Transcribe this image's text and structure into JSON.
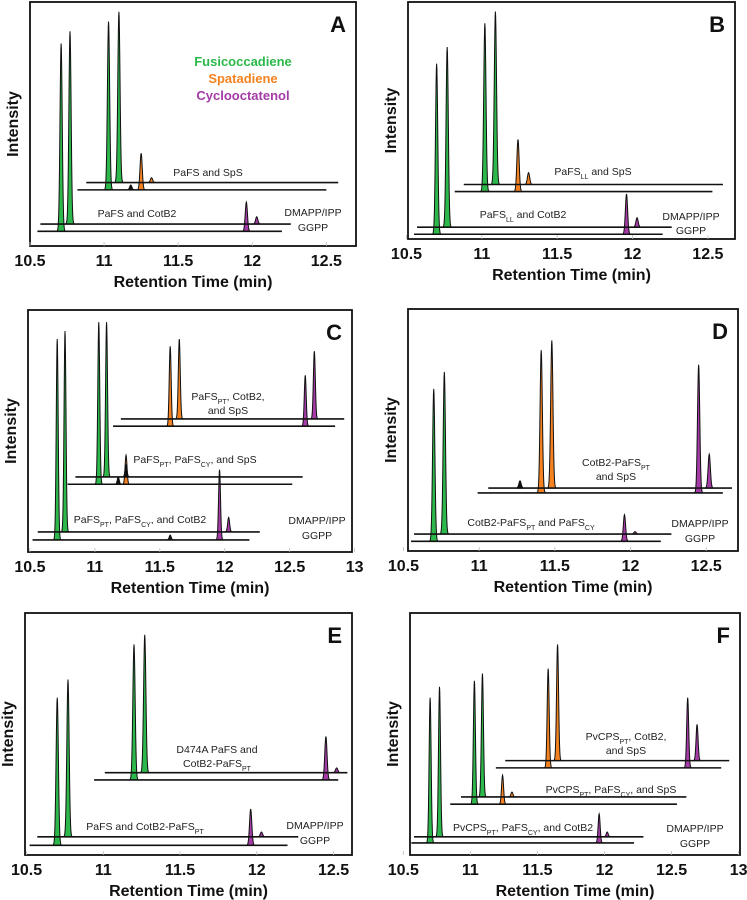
{
  "colors": {
    "Fusicoccadiene": "#2db84b",
    "Spatadiene": "#f58220",
    "Cyclooctatenol": "#a43ba6",
    "none": "#111111"
  },
  "legend": [
    "Fusicoccadiene",
    "Spatadiene",
    "Cyclooctatenol"
  ],
  "chart_data": [
    {
      "type": "line",
      "panel": "A",
      "xlabel": "Retention Time (min)",
      "ylabel": "Intensity",
      "xlim": [
        10.5,
        12.7
      ],
      "xticks": [
        "10.5",
        "11",
        "11.5",
        "12",
        "12.5"
      ],
      "labels": [
        [
          [
            {
              "text": "PaFS and SpS"
            }
          ]
        ],
        [
          [
            {
              "text": "PaFS and CotB2"
            }
          ]
        ],
        [
          [
            {
              "text": "DMAPP/IPP"
            }
          ]
        ],
        [
          [
            {
              "text": "GGPP"
            }
          ]
        ]
      ],
      "traces": [
        {
          "name": "GGPP",
          "x": [
            10.55,
            12.2
          ],
          "baseline": 0.06,
          "peaks": [
            [
              10.71,
              0.77,
              "Fusicoccadiene"
            ],
            [
              11.96,
              0.12,
              "Cyclooctatenol"
            ]
          ]
        },
        {
          "name": "DMAPP/IPP",
          "x": [
            10.57,
            12.26
          ],
          "baseline": 0.09,
          "peaks": [
            [
              10.77,
              0.79,
              "Fusicoccadiene"
            ],
            [
              12.03,
              0.03,
              "Cyclooctatenol"
            ]
          ]
        },
        {
          "name": "PaFS and SpS (GGPP)",
          "x": [
            10.82,
            12.5
          ],
          "baseline": 0.23,
          "peaks": [
            [
              11.03,
              0.69,
              "Fusicoccadiene"
            ],
            [
              11.18,
              0.02,
              "none"
            ],
            [
              11.25,
              0.15,
              "Spatadiene"
            ]
          ]
        },
        {
          "name": "PaFS and SpS (DMAPP/IPP)",
          "x": [
            10.88,
            12.58
          ],
          "baseline": 0.26,
          "peaks": [
            [
              11.1,
              0.7,
              "Fusicoccadiene"
            ],
            [
              11.32,
              0.02,
              "Spatadiene"
            ]
          ]
        }
      ]
    },
    {
      "type": "line",
      "panel": "B",
      "xlabel": "Retention Time (min)",
      "ylabel": "Intensity",
      "xlim": [
        10.51,
        12.68
      ],
      "xticks": [
        "10.5",
        "11",
        "11.5",
        "12",
        "12.5"
      ],
      "labels": [
        [
          [
            {
              "text": "PaFS"
            },
            {
              "text": "LL",
              "sub": true
            },
            {
              "text": " and SpS"
            }
          ]
        ],
        [
          [
            {
              "text": "PaFS"
            },
            {
              "text": "LL",
              "sub": true
            },
            {
              "text": " and CotB2"
            }
          ]
        ],
        [
          [
            {
              "text": "DMAPP/IPP"
            }
          ]
        ],
        [
          [
            {
              "text": "GGPP"
            }
          ]
        ]
      ],
      "traces": [
        {
          "name": "GGPP",
          "x": [
            10.55,
            12.2
          ],
          "baseline": 0.02,
          "peaks": [
            [
              10.7,
              0.72,
              "Fusicoccadiene"
            ],
            [
              11.96,
              0.17,
              "Cyclooctatenol"
            ]
          ]
        },
        {
          "name": "DMAPP/IPP",
          "x": [
            10.57,
            12.26
          ],
          "baseline": 0.05,
          "peaks": [
            [
              10.77,
              0.76,
              "Fusicoccadiene"
            ],
            [
              12.03,
              0.04,
              "Cyclooctatenol"
            ]
          ]
        },
        {
          "name": "PaFS_LL and SpS (GGPP)",
          "x": [
            10.82,
            12.53
          ],
          "baseline": 0.2,
          "peaks": [
            [
              11.02,
              0.71,
              "Fusicoccadiene"
            ],
            [
              11.24,
              0.22,
              "Spatadiene"
            ]
          ]
        },
        {
          "name": "PaFS_LL and SpS (DMAPP/IPP)",
          "x": [
            10.88,
            12.6
          ],
          "baseline": 0.23,
          "peaks": [
            [
              11.09,
              0.73,
              "Fusicoccadiene"
            ],
            [
              11.31,
              0.05,
              "Spatadiene"
            ]
          ]
        }
      ]
    },
    {
      "type": "line",
      "panel": "C",
      "xlabel": "Retention Time (min)",
      "ylabel": "Intensity",
      "xlim": [
        10.485,
        12.98
      ],
      "xticks": [
        "10.5",
        "11",
        "11.5",
        "12",
        "12.5",
        "13"
      ],
      "labels": [
        [
          [
            {
              "text": "PaFS"
            },
            {
              "text": "PT",
              "sub": true
            },
            {
              "text": ", CotB2,"
            }
          ],
          [
            {
              "text": "and SpS"
            }
          ]
        ],
        [
          [
            {
              "text": "PaFS"
            },
            {
              "text": "PT",
              "sub": true
            },
            {
              "text": ", PaFS"
            },
            {
              "text": "CY",
              "sub": true
            },
            {
              "text": ", and SpS"
            }
          ]
        ],
        [
          [
            {
              "text": "PaFS"
            },
            {
              "text": "PT",
              "sub": true
            },
            {
              "text": ", PaFS"
            },
            {
              "text": "CY",
              "sub": true
            },
            {
              "text": ", and CotB2"
            }
          ]
        ],
        [
          [
            {
              "text": "DMAPP/IPP"
            }
          ]
        ],
        [
          [
            {
              "text": "GGPP"
            }
          ]
        ]
      ],
      "traces": [
        {
          "name": "GGPP",
          "x": [
            10.52,
            12.19
          ],
          "baseline": 0.05,
          "peaks": [
            [
              10.71,
              0.83,
              "Fusicoccadiene"
            ],
            [
              11.58,
              0.02,
              "none"
            ],
            [
              11.96,
              0.29,
              "Cyclooctatenol"
            ]
          ]
        },
        {
          "name": "DMAPP/IPP",
          "x": [
            10.56,
            12.27
          ],
          "baseline": 0.083,
          "peaks": [
            [
              10.77,
              0.83,
              "Fusicoccadiene"
            ],
            [
              12.03,
              0.06,
              "Cyclooctatenol"
            ]
          ]
        },
        {
          "name": "PaFS_PT, PaFS_CY, and SpS (GGPP)",
          "x": [
            10.79,
            12.52
          ],
          "baseline": 0.28,
          "peaks": [
            [
              11.03,
              0.67,
              "Fusicoccadiene"
            ],
            [
              11.18,
              0.03,
              "none"
            ],
            [
              11.24,
              0.12,
              "Spatadiene"
            ]
          ]
        },
        {
          "name": "PaFS_PT, PaFS_CY, and SpS (DMAPP/IPP)",
          "x": [
            10.85,
            12.6
          ],
          "baseline": 0.31,
          "peaks": [
            [
              11.09,
              0.64,
              "Fusicoccadiene"
            ],
            [
              11.24,
              0.05,
              "none"
            ]
          ]
        },
        {
          "name": "PaFS_PT, CotB2, and SpS (GGPP)",
          "x": [
            11.14,
            12.85
          ],
          "baseline": 0.52,
          "peaks": [
            [
              11.58,
              0.33,
              "Spatadiene"
            ],
            [
              12.62,
              0.21,
              "Cyclooctatenol"
            ]
          ]
        },
        {
          "name": "PaFS_PT, CotB2, and SpS (DMAPP/IPP)",
          "x": [
            11.2,
            12.92
          ],
          "baseline": 0.55,
          "peaks": [
            [
              11.65,
              0.33,
              "Spatadiene"
            ],
            [
              12.69,
              0.28,
              "Cyclooctatenol"
            ]
          ]
        }
      ]
    },
    {
      "type": "line",
      "panel": "D",
      "xlabel": "Retention Time (min)",
      "ylabel": "Intensity",
      "xlim": [
        10.53,
        12.71
      ],
      "xticks": [
        "10.5",
        "11",
        "11.5",
        "12",
        "12.5"
      ],
      "labels": [
        [
          [
            {
              "text": "CotB2-PaFS"
            },
            {
              "text": "PT",
              "sub": true
            }
          ],
          [
            {
              "text": "and SpS"
            }
          ]
        ],
        [
          [
            {
              "text": "CotB2-PaFS"
            },
            {
              "text": "PT",
              "sub": true
            },
            {
              "text": " and PaFS"
            },
            {
              "text": "CY",
              "sub": true
            }
          ]
        ],
        [
          [
            {
              "text": "DMAPP/IPP"
            }
          ]
        ],
        [
          [
            {
              "text": "GGPP"
            }
          ]
        ]
      ],
      "traces": [
        {
          "name": "GGPP",
          "x": [
            10.55,
            12.2
          ],
          "baseline": 0.04,
          "peaks": [
            [
              10.7,
              0.63,
              "Fusicoccadiene"
            ],
            [
              11.96,
              0.11,
              "Cyclooctatenol"
            ]
          ]
        },
        {
          "name": "DMAPP/IPP",
          "x": [
            10.57,
            12.27
          ],
          "baseline": 0.07,
          "peaks": [
            [
              10.77,
              0.67,
              "Fusicoccadiene"
            ],
            [
              12.03,
              0.01,
              "Cyclooctatenol"
            ]
          ]
        },
        {
          "name": "CotB2-PaFS_PT and SpS (GGPP)",
          "x": [
            10.99,
            12.61
          ],
          "baseline": 0.24,
          "peaks": [
            [
              11.41,
              0.59,
              "Spatadiene"
            ],
            [
              12.45,
              0.53,
              "Cyclooctatenol"
            ]
          ]
        },
        {
          "name": "CotB2-PaFS_PT and SpS (DMAPP/IPP)",
          "x": [
            11.06,
            12.67
          ],
          "baseline": 0.26,
          "peaks": [
            [
              11.27,
              0.03,
              "none"
            ],
            [
              11.48,
              0.61,
              "Spatadiene"
            ],
            [
              12.52,
              0.14,
              "Cyclooctatenol"
            ]
          ]
        }
      ]
    },
    {
      "type": "line",
      "panel": "E",
      "xlabel": "Retention Time (min)",
      "ylabel": "Intensity",
      "xlim": [
        10.49,
        12.62
      ],
      "xticks": [
        "10.5",
        "11",
        "11.5",
        "12",
        "12.5"
      ],
      "labels": [
        [
          [
            {
              "text": "D474A PaFS and"
            }
          ],
          [
            {
              "text": "CotB2-PaFS"
            },
            {
              "text": "PT",
              "sub": true
            }
          ]
        ],
        [
          [
            {
              "text": "PaFS and CotB2-PaFS"
            },
            {
              "text": "PT",
              "sub": true
            }
          ]
        ],
        [
          [
            {
              "text": "DMAPP/IPP"
            }
          ]
        ],
        [
          [
            {
              "text": "GGPP"
            }
          ]
        ]
      ],
      "traces": [
        {
          "name": "GGPP",
          "x": [
            10.52,
            12.2
          ],
          "baseline": 0.04,
          "peaks": [
            [
              10.7,
              0.61,
              "Fusicoccadiene"
            ],
            [
              11.96,
              0.15,
              "Cyclooctatenol"
            ]
          ]
        },
        {
          "name": "DMAPP/IPP",
          "x": [
            10.57,
            12.27
          ],
          "baseline": 0.075,
          "peaks": [
            [
              10.77,
              0.65,
              "Fusicoccadiene"
            ],
            [
              12.03,
              0.02,
              "Cyclooctatenol"
            ]
          ]
        },
        {
          "name": "D474A PaFS and CotB2-PaFS_PT (GGPP)",
          "x": [
            10.94,
            12.53
          ],
          "baseline": 0.31,
          "peaks": [
            [
              11.2,
              0.56,
              "Fusicoccadiene"
            ],
            [
              12.45,
              0.18,
              "Cyclooctatenol"
            ]
          ]
        },
        {
          "name": "D474A PaFS and CotB2-PaFS_PT (DMAPP/IPP)",
          "x": [
            11.01,
            12.59
          ],
          "baseline": 0.34,
          "peaks": [
            [
              11.27,
              0.57,
              "Fusicoccadiene"
            ],
            [
              12.52,
              0.02,
              "Cyclooctatenol"
            ]
          ]
        }
      ]
    },
    {
      "type": "line",
      "panel": "F",
      "xlabel": "Retention Time (min)",
      "ylabel": "Intensity",
      "xlim": [
        10.55,
        13.01
      ],
      "xticks": [
        "10.5",
        "11",
        "11.5",
        "12",
        "12.5",
        "13"
      ],
      "labels": [
        [
          [
            {
              "text": "PvCPS"
            },
            {
              "text": "PT",
              "sub": true
            },
            {
              "text": ", CotB2,"
            }
          ],
          [
            {
              "text": "and SpS"
            }
          ]
        ],
        [
          [
            {
              "text": "PvCPS"
            },
            {
              "text": "PT",
              "sub": true
            },
            {
              "text": ", PaFS"
            },
            {
              "text": "CY",
              "sub": true
            },
            {
              "text": ", and SpS"
            }
          ]
        ],
        [
          [
            {
              "text": "PvCPS"
            },
            {
              "text": "PT",
              "sub": true
            },
            {
              "text": ", PaFS"
            },
            {
              "text": "CY",
              "sub": true
            },
            {
              "text": ", and CotB2"
            }
          ]
        ],
        [
          [
            {
              "text": "DMAPP/IPP"
            }
          ]
        ],
        [
          [
            {
              "text": "GGPP"
            }
          ]
        ]
      ],
      "traces": [
        {
          "name": "GGPP",
          "x": [
            10.56,
            12.22
          ],
          "baseline": 0.05,
          "peaks": [
            [
              10.7,
              0.6,
              "Fusicoccadiene"
            ],
            [
              11.96,
              0.12,
              "Cyclooctatenol"
            ]
          ]
        },
        {
          "name": "DMAPP/IPP",
          "x": [
            10.58,
            12.29
          ],
          "baseline": 0.075,
          "peaks": [
            [
              10.77,
              0.62,
              "Fusicoccadiene"
            ],
            [
              12.02,
              0.02,
              "Cyclooctatenol"
            ]
          ]
        },
        {
          "name": "PvCPS_PT, PaFS_CY, and SpS (GGPP)",
          "x": [
            10.85,
            12.54
          ],
          "baseline": 0.21,
          "peaks": [
            [
              11.03,
              0.51,
              "Fusicoccadiene"
            ],
            [
              11.24,
              0.12,
              "Spatadiene"
            ]
          ]
        },
        {
          "name": "PvCPS_PT, PaFS_CY, and SpS (DMAPP/IPP)",
          "x": [
            10.93,
            12.61
          ],
          "baseline": 0.24,
          "peaks": [
            [
              11.09,
              0.51,
              "Fusicoccadiene"
            ],
            [
              11.31,
              0.02,
              "Spatadiene"
            ]
          ]
        },
        {
          "name": "PvCPS_PT, CotB2, and SpS (GGPP)",
          "x": [
            11.19,
            12.87
          ],
          "baseline": 0.36,
          "peaks": [
            [
              11.58,
              0.41,
              "Spatadiene"
            ],
            [
              12.62,
              0.29,
              "Cyclooctatenol"
            ]
          ]
        },
        {
          "name": "PvCPS_PT, CotB2, and SpS (DMAPP/IPP)",
          "x": [
            11.26,
            12.93
          ],
          "baseline": 0.39,
          "peaks": [
            [
              11.65,
              0.48,
              "Spatadiene"
            ],
            [
              12.69,
              0.15,
              "Cyclooctatenol"
            ]
          ]
        }
      ]
    }
  ]
}
